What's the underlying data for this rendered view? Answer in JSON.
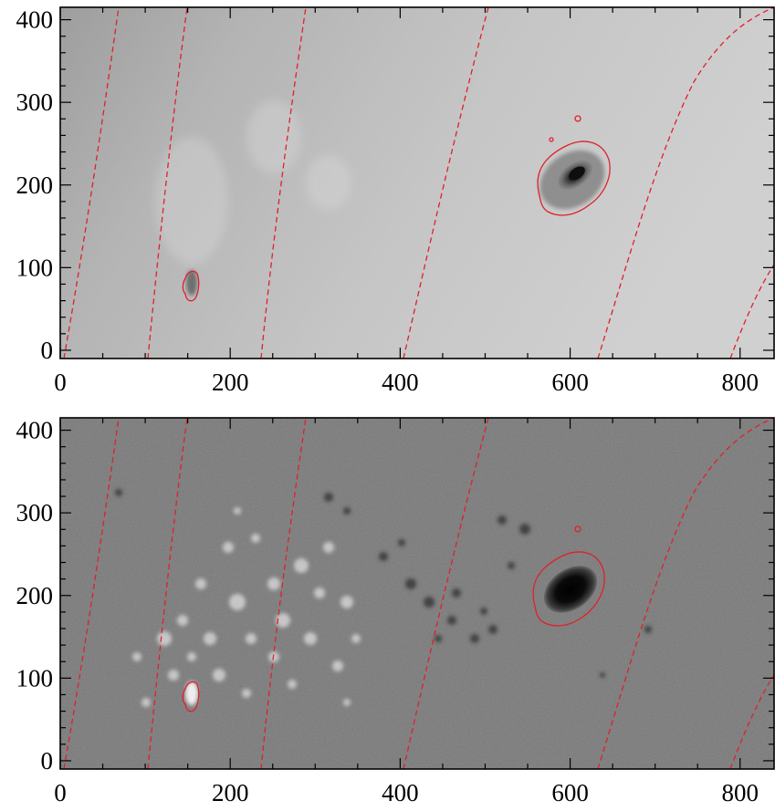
{
  "figure": {
    "panels": [
      {
        "id": "continuum",
        "description_kind": "solar continuum intensity image",
        "x_ticks": [
          "0",
          "200",
          "400",
          "600",
          "800"
        ],
        "y_ticks": [
          "0",
          "100",
          "200",
          "300",
          "400"
        ],
        "x_range": [
          0,
          840
        ],
        "y_range": [
          -10,
          415
        ],
        "background": "#c9c9c9"
      },
      {
        "id": "magnetogram",
        "description_kind": "solar line-of-sight magnetogram",
        "x_ticks": [
          "0",
          "200",
          "400",
          "600",
          "800"
        ],
        "y_ticks": [
          "0",
          "100",
          "200",
          "300",
          "400"
        ],
        "x_range": [
          0,
          840
        ],
        "y_range": [
          -10,
          415
        ],
        "background": "#7d7d7d"
      }
    ],
    "overlay_color": "#e0202a"
  }
}
